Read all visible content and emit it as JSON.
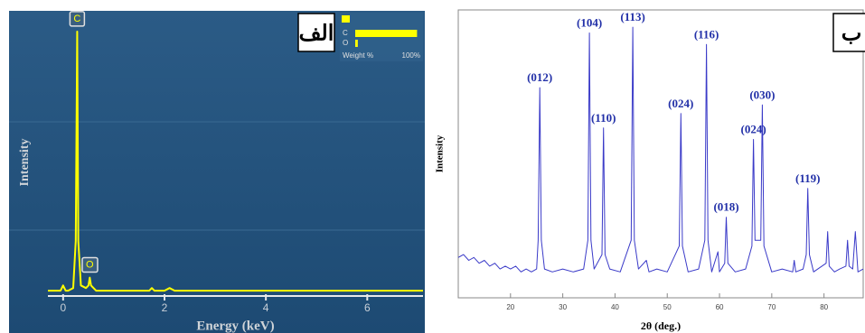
{
  "chart_data": [
    {
      "type": "line",
      "xlabel": "Energy (keV)",
      "ylabel": "Intensity",
      "panel_label": "الف",
      "color": "#ffff00",
      "xlim": [
        -0.3,
        7.1
      ],
      "xticks": [
        0,
        2,
        4,
        6
      ],
      "ylim": [
        0,
        100
      ],
      "x": [
        -0.3,
        -0.05,
        0.0,
        0.05,
        0.1,
        0.2,
        0.25,
        0.277,
        0.3,
        0.35,
        0.45,
        0.5,
        0.525,
        0.55,
        0.65,
        1.0,
        1.5,
        1.7,
        1.75,
        1.8,
        2.0,
        2.1,
        2.2,
        3.0,
        4.0,
        5.0,
        6.0,
        7.1
      ],
      "values": [
        1,
        1,
        3,
        1,
        1,
        2,
        20,
        100,
        20,
        3,
        2,
        3,
        6,
        3,
        1,
        1,
        1,
        1,
        2,
        1,
        1,
        2,
        1,
        1,
        1,
        1,
        1,
        1
      ],
      "annotations": [
        {
          "text": "C",
          "x": 0.277
        },
        {
          "text": "O",
          "x": 0.525
        }
      ],
      "inset": {
        "type": "bar",
        "categories": [
          "C",
          "O"
        ],
        "values": [
          95,
          4
        ],
        "xlabel": "Weight %",
        "xlim": [
          0,
          100
        ],
        "xticks": [
          {
            "value": 100,
            "label": "100%"
          }
        ],
        "color": "#ffff00"
      }
    },
    {
      "type": "line",
      "xlabel": "2θ (deg.)",
      "ylabel": "Intensity",
      "panel_label": "ب",
      "color": "#3a3ac8",
      "xlim": [
        10,
        87.5
      ],
      "xticks": [
        20,
        30,
        40,
        50,
        60,
        70,
        80
      ],
      "ylim": [
        0,
        100
      ],
      "x": [
        10,
        11,
        12,
        13,
        14,
        15,
        16,
        17,
        18,
        19,
        20,
        21,
        22,
        23,
        24,
        25,
        25.3,
        25.6,
        25.9,
        26.5,
        28,
        30,
        32,
        34,
        34.8,
        35.1,
        35.4,
        36,
        37.5,
        37.8,
        38.1,
        39,
        41,
        43.1,
        43.4,
        43.7,
        44.5,
        46,
        46.5,
        48,
        50,
        52.3,
        52.6,
        52.9,
        54,
        56,
        57.2,
        57.5,
        57.8,
        58.5,
        59.7,
        60,
        61,
        61.3,
        61.6,
        63,
        65,
        66.2,
        66.5,
        66.8,
        67.9,
        68.2,
        68.5,
        70,
        72,
        74,
        74.3,
        74.6,
        76,
        76.6,
        76.9,
        77.2,
        78,
        80.4,
        80.7,
        81,
        82,
        83,
        84.2,
        84.5,
        84.8,
        85.5,
        86,
        86.5,
        87.5
      ],
      "values": [
        14,
        15,
        13,
        14,
        12,
        13,
        11,
        12,
        10,
        11,
        10,
        11,
        9,
        10,
        9,
        10,
        20,
        73,
        20,
        10,
        9,
        10,
        9,
        10,
        20,
        92,
        20,
        10,
        15,
        59,
        15,
        10,
        9,
        20,
        94,
        20,
        10,
        13,
        9,
        10,
        9,
        18,
        64,
        18,
        9,
        10,
        20,
        88,
        20,
        9,
        16,
        9,
        12,
        28,
        12,
        9,
        10,
        18,
        55,
        20,
        20,
        67,
        18,
        9,
        10,
        9,
        13,
        9,
        10,
        15,
        38,
        15,
        9,
        12,
        23,
        11,
        9,
        10,
        11,
        20,
        11,
        10,
        23,
        9,
        10
      ],
      "annotations": [
        {
          "text": "(012)",
          "x": 25.6
        },
        {
          "text": "(104)",
          "x": 35.1
        },
        {
          "text": "(110)",
          "x": 37.8
        },
        {
          "text": "(113)",
          "x": 43.4
        },
        {
          "text": "(024)",
          "x": 52.6
        },
        {
          "text": "(116)",
          "x": 57.5
        },
        {
          "text": "(018)",
          "x": 61.3
        },
        {
          "text": "(024)",
          "x": 66.5
        },
        {
          "text": "(030)",
          "x": 68.2
        },
        {
          "text": "(119)",
          "x": 76.9
        }
      ]
    }
  ]
}
